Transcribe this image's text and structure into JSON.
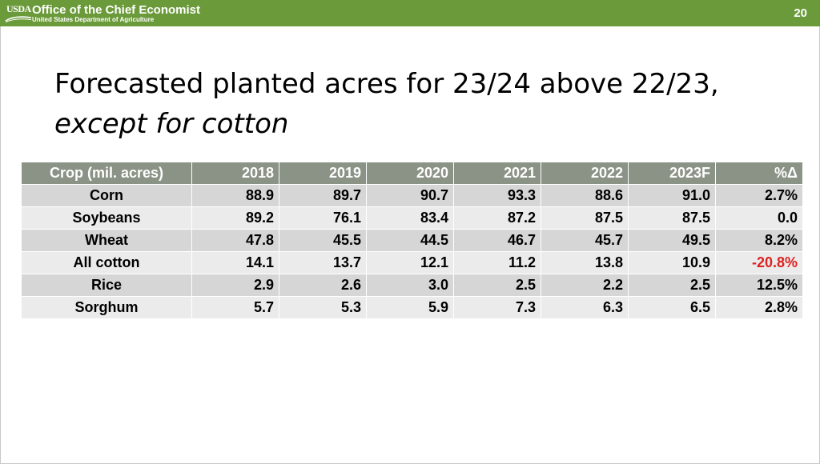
{
  "header": {
    "logo_text": "USDA",
    "org_name": "Office of the Chief Economist",
    "dept_name": "United States Department of Agriculture",
    "page_number": "20",
    "bar_color": "#6b9a3a"
  },
  "slide": {
    "title_line1": "Forecasted planted acres for 23/24 above 22/23,",
    "title_line2": "except for cotton"
  },
  "table": {
    "columns": [
      "Crop (mil. acres)",
      "2018",
      "2019",
      "2020",
      "2021",
      "2022",
      "2023F",
      "%Δ"
    ],
    "rows": [
      [
        "Corn",
        "88.9",
        "89.7",
        "90.7",
        "93.3",
        "88.6",
        "91.0",
        "2.7%"
      ],
      [
        "Soybeans",
        "89.2",
        "76.1",
        "83.4",
        "87.2",
        "87.5",
        "87.5",
        "0.0"
      ],
      [
        "Wheat",
        "47.8",
        "45.5",
        "44.5",
        "46.7",
        "45.7",
        "49.5",
        "8.2%"
      ],
      [
        "All cotton",
        "14.1",
        "13.7",
        "12.1",
        "11.2",
        "13.8",
        "10.9",
        "-20.8%"
      ],
      [
        "Rice",
        "2.9",
        "2.6",
        "3.0",
        "2.5",
        "2.2",
        "2.5",
        "12.5%"
      ],
      [
        "Sorghum",
        "5.7",
        "5.3",
        "5.9",
        "7.3",
        "6.3",
        "6.5",
        "2.8%"
      ]
    ],
    "negative_color": "#e02020"
  }
}
